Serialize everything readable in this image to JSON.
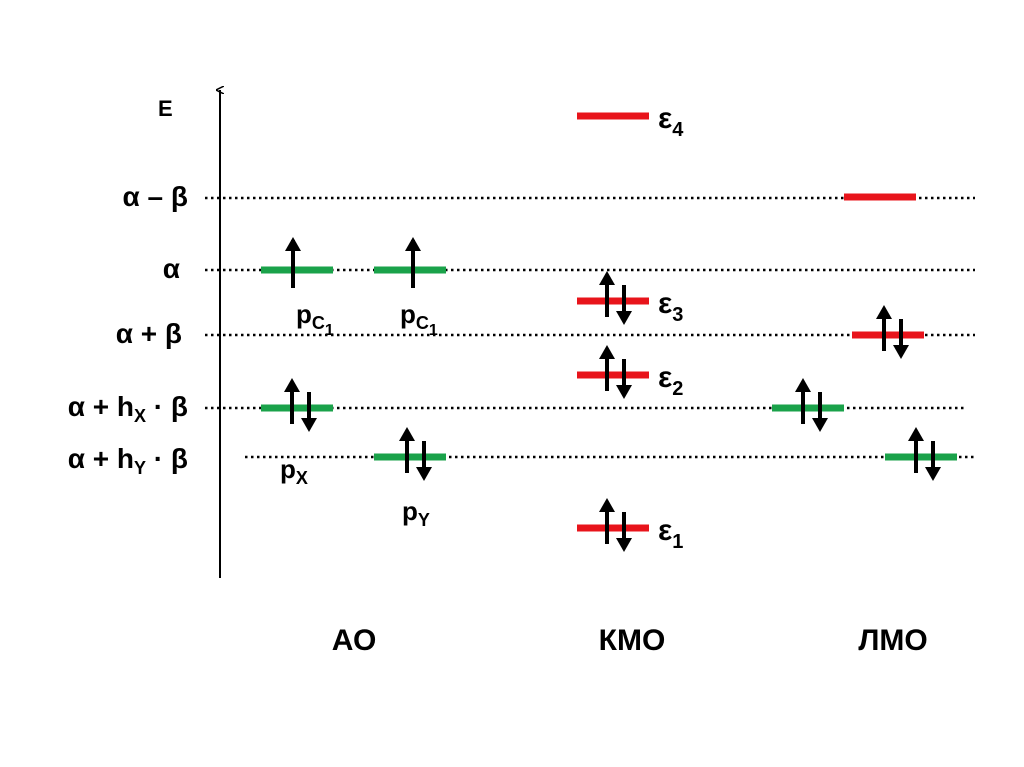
{
  "axis": {
    "label": "E"
  },
  "levels": {
    "a_minus_b": {
      "a": "α",
      "op": " – ",
      "b": "β"
    },
    "a": {
      "a": "α"
    },
    "a_plus_b": {
      "a": "α",
      "op": " + ",
      "b": "β"
    },
    "a_plus_hx_b": {
      "a": "α",
      "op": " + h",
      "sub": "X",
      "dot": " · ",
      "b": "β"
    },
    "a_plus_hy_b": {
      "a": "α",
      "op": " + h",
      "sub": "Y",
      "dot": " · ",
      "b": "β"
    }
  },
  "ao": {
    "pc1_left": {
      "p": "p",
      "sub": "C",
      "subsub": "1"
    },
    "pc1_right": {
      "p": "p",
      "sub": "C",
      "subsub": "1"
    },
    "px": {
      "p": "p",
      "sub": "X"
    },
    "py": {
      "p": "p",
      "sub": "Y"
    }
  },
  "kmo": {
    "e4": {
      "e": "ε",
      "sub": "4"
    },
    "e3": {
      "e": "ε",
      "sub": "3"
    },
    "e2": {
      "e": "ε",
      "sub": "2"
    },
    "e1": {
      "e": "ε",
      "sub": "1"
    }
  },
  "columns": {
    "ao": "АО",
    "kmo": "КМО",
    "lmo": "ЛМО"
  },
  "colors": {
    "ao_level": "#1aa24a",
    "mo_level": "#e8141b",
    "axis": "#000000"
  }
}
